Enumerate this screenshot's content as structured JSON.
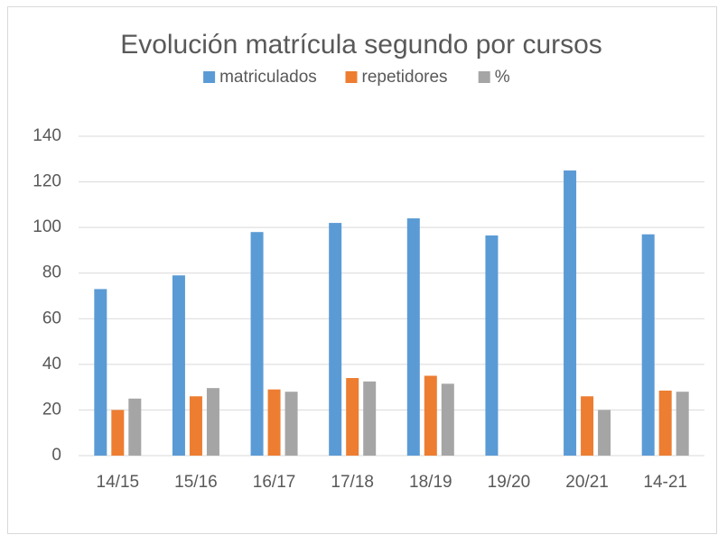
{
  "chart_data": {
    "type": "bar",
    "title": "Evolución matrícula segundo por cursos",
    "categories": [
      "14/15",
      "15/16",
      "16/17",
      "17/18",
      "18/19",
      "19/20",
      "20/21",
      "14-21"
    ],
    "series": [
      {
        "name": "matriculados",
        "color": "#5b9bd5",
        "values": [
          73,
          79,
          98,
          102,
          104,
          96.5,
          125,
          97
        ]
      },
      {
        "name": "repetidores",
        "color": "#ed7d31",
        "values": [
          20,
          26,
          29,
          34,
          35,
          null,
          26,
          28.5
        ]
      },
      {
        "name": "%",
        "color": "#a5a5a5",
        "values": [
          25,
          29.6,
          28,
          32.5,
          31.5,
          null,
          20,
          28
        ]
      }
    ],
    "ylim": [
      0,
      140
    ],
    "yticks": [
      0,
      20,
      40,
      60,
      80,
      100,
      120,
      140
    ],
    "grid": true,
    "legend": "top"
  }
}
